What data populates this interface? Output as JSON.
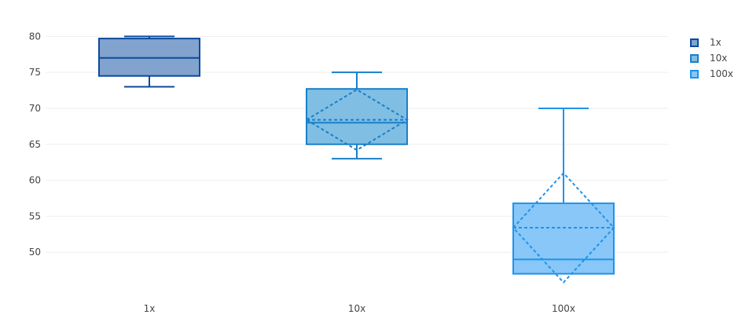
{
  "chart_data": {
    "type": "box",
    "ylim": [
      45,
      82
    ],
    "y_ticks": [
      50,
      55,
      60,
      65,
      70,
      75,
      80
    ],
    "grid": true,
    "legend_position": "top-right",
    "categories": [
      "1x",
      "10x",
      "100x"
    ],
    "series": [
      {
        "name": "1x",
        "category": "1x",
        "lower_whisker": 73,
        "q1": 74.5,
        "median": 77,
        "q3": 79.7,
        "upper_whisker": 80,
        "color": "#0c4a9e",
        "fill": "#81a3ce"
      },
      {
        "name": "10x",
        "category": "10x",
        "lower_whisker": 63,
        "q1": 65,
        "median": 68,
        "q3": 72.7,
        "upper_whisker": 75,
        "mean": 68.4,
        "mean_minus_sd": 64.2,
        "mean_plus_sd": 72.6,
        "color": "#1a7fc9",
        "fill": "#80bfe3"
      },
      {
        "name": "100x",
        "category": "100x",
        "lower_whisker": 47,
        "q1": 47,
        "median": 49,
        "q3": 56.8,
        "upper_whisker": 70,
        "mean": 53.4,
        "mean_minus_sd": 45.8,
        "mean_plus_sd": 61.0,
        "color": "#1f93ea",
        "fill": "#88c7f7"
      }
    ]
  }
}
